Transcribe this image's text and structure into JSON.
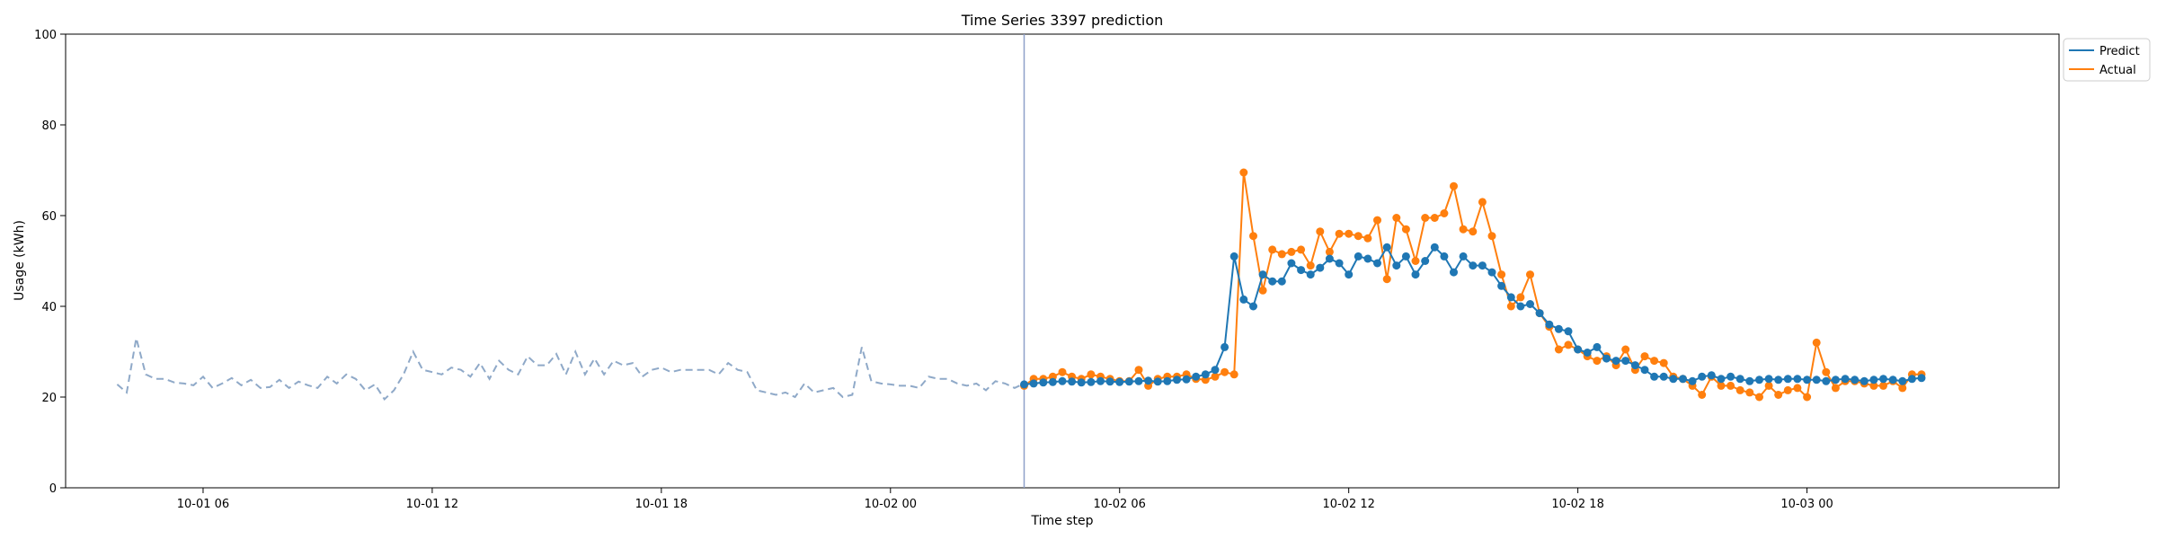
{
  "chart_data": {
    "type": "line",
    "title": "Time Series 3397 prediction",
    "xlabel": "Time step",
    "ylabel": "Usage (kWh)",
    "ylim": [
      0,
      100
    ],
    "yticks": [
      0,
      20,
      40,
      60,
      80,
      100
    ],
    "xlim": [
      "10-01 02:24",
      "10-03 06:36"
    ],
    "xticks": [
      {
        "t": "10-01 06:00",
        "label": "10-01 06"
      },
      {
        "t": "10-01 12:00",
        "label": "10-01 12"
      },
      {
        "t": "10-01 18:00",
        "label": "10-01 18"
      },
      {
        "t": "10-02 00:00",
        "label": "10-02 00"
      },
      {
        "t": "10-02 06:00",
        "label": "10-02 06"
      },
      {
        "t": "10-02 12:00",
        "label": "10-02 12"
      },
      {
        "t": "10-02 18:00",
        "label": "10-02 18"
      },
      {
        "t": "10-03 00:00",
        "label": "10-03 00"
      }
    ],
    "grid": false,
    "legend_position": "outside top-right",
    "forecast_start": "10-02 03:30",
    "interval_minutes": 15,
    "history": {
      "start": "10-01 03:45",
      "color": "#8fa9c8",
      "style": "dashed",
      "values": [
        22.8,
        21.0,
        33.0,
        25.0,
        24.0,
        24.0,
        23.2,
        23.0,
        22.6,
        24.5,
        22.0,
        23.0,
        24.2,
        22.6,
        23.8,
        22.0,
        22.2,
        23.8,
        22.0,
        23.4,
        22.6,
        22.0,
        24.5,
        23.0,
        25.0,
        24.0,
        21.5,
        22.8,
        19.5,
        21.5,
        25.0,
        30.0,
        26.0,
        25.5,
        25.0,
        26.5,
        26.0,
        24.5,
        27.5,
        24.0,
        28.0,
        26.0,
        25.0,
        29.0,
        27.0,
        27.0,
        29.5,
        25.0,
        30.0,
        25.0,
        28.5,
        25.0,
        28.0,
        27.0,
        27.5,
        24.5,
        26.0,
        26.5,
        25.5,
        26.0,
        26.0,
        26.0,
        26.0,
        25.0,
        27.5,
        26.0,
        25.5,
        21.5,
        21.0,
        20.5,
        21.0,
        20.0,
        23.0,
        21.0,
        21.5,
        22.0,
        20.0,
        20.5,
        31.0,
        23.5,
        23.0,
        22.8,
        22.5,
        22.5,
        22.0,
        24.5,
        24.0,
        24.0,
        23.0,
        22.5,
        23.0,
        21.5,
        23.5,
        23.0,
        22.0,
        23.0
      ]
    },
    "series": [
      {
        "name": "Predict",
        "color": "#1f77b4",
        "start": "10-02 03:30",
        "values": [
          22.8,
          23.0,
          23.2,
          23.3,
          23.5,
          23.4,
          23.2,
          23.3,
          23.5,
          23.4,
          23.3,
          23.4,
          23.5,
          23.6,
          23.4,
          23.5,
          23.8,
          23.9,
          24.5,
          25.0,
          26.0,
          31.0,
          51.0,
          41.5,
          40.0,
          47.0,
          45.5,
          45.5,
          49.5,
          48.0,
          47.0,
          48.5,
          50.5,
          49.5,
          47.0,
          51.0,
          50.5,
          49.5,
          53.0,
          49.0,
          51.0,
          47.0,
          50.0,
          53.0,
          51.0,
          47.5,
          51.0,
          49.0,
          49.0,
          47.5,
          44.5,
          42.0,
          40.0,
          40.5,
          38.5,
          36.0,
          35.0,
          34.5,
          30.5,
          29.8,
          31.0,
          28.5,
          28.0,
          28.0,
          27.0,
          26.0,
          24.5,
          24.5,
          24.0,
          24.0,
          23.5,
          24.5,
          24.8,
          24.0,
          24.5,
          24.0,
          23.5,
          23.8,
          24.0,
          23.8,
          24.0,
          24.0,
          23.8,
          23.8,
          23.5,
          23.8,
          24.0,
          23.8,
          23.5,
          23.8,
          24.0,
          23.8,
          23.5,
          24.0,
          24.2
        ]
      },
      {
        "name": "Actual",
        "color": "#ff7f0e",
        "start": "10-02 03:30",
        "values": [
          22.5,
          24.0,
          24.0,
          24.5,
          25.5,
          24.5,
          24.0,
          25.0,
          24.5,
          24.0,
          23.5,
          23.5,
          26.0,
          22.5,
          24.0,
          24.5,
          24.5,
          25.0,
          24.0,
          23.8,
          24.5,
          25.5,
          25.0,
          69.5,
          55.5,
          43.5,
          52.5,
          51.5,
          52.0,
          52.5,
          49.0,
          56.5,
          52.0,
          56.0,
          56.0,
          55.5,
          55.0,
          59.0,
          46.0,
          59.5,
          57.0,
          50.0,
          59.5,
          59.5,
          60.5,
          66.5,
          57.0,
          56.5,
          63.0,
          55.5,
          47.0,
          40.0,
          42.0,
          47.0,
          38.5,
          35.5,
          30.5,
          31.5,
          30.5,
          29.0,
          28.0,
          29.0,
          27.0,
          30.5,
          26.0,
          29.0,
          28.0,
          27.5,
          24.5,
          24.0,
          22.5,
          20.5,
          24.5,
          22.5,
          22.5,
          21.5,
          21.0,
          20.0,
          22.5,
          20.5,
          21.5,
          22.0,
          20.0,
          32.0,
          25.5,
          22.0,
          23.5,
          23.5,
          23.0,
          22.5,
          22.5,
          23.5,
          22.0,
          25.0,
          25.0
        ]
      }
    ]
  }
}
